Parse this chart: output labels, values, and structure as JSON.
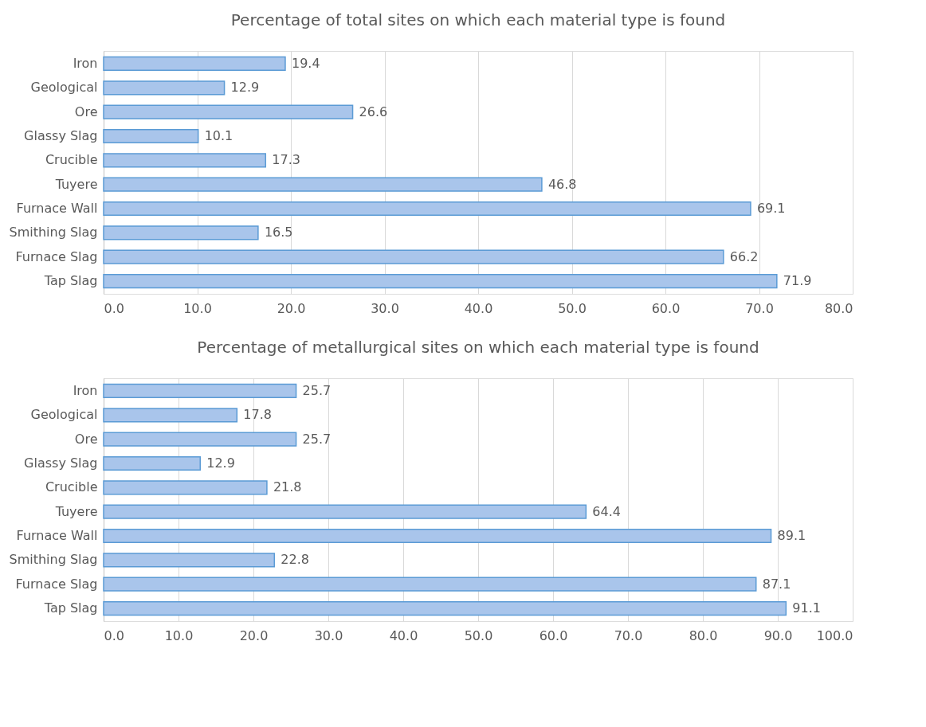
{
  "chart_data": [
    {
      "type": "bar",
      "orientation": "horizontal",
      "title": "Percentage  of total sites on which each material type is found",
      "categories": [
        "Iron",
        "Geological",
        "Ore",
        "Glassy Slag",
        "Crucible",
        "Tuyere",
        "Furnace Wall",
        "Smithing Slag",
        "Furnace Slag",
        "Tap Slag"
      ],
      "values": [
        19.4,
        12.9,
        26.6,
        10.1,
        17.3,
        46.8,
        69.1,
        16.5,
        66.2,
        71.9
      ],
      "color": "#a9c5eb",
      "xlim": [
        0,
        80
      ],
      "xticks": [
        {
          "value": 0,
          "label": "0.0"
        },
        {
          "value": 10,
          "label": "10.0"
        },
        {
          "value": 20,
          "label": "20.0"
        },
        {
          "value": 30,
          "label": "30.0"
        },
        {
          "value": 40,
          "label": "40.0"
        },
        {
          "value": 50,
          "label": "50.0"
        },
        {
          "value": 60,
          "label": "60.0"
        },
        {
          "value": 70,
          "label": "70.0"
        },
        {
          "value": 80,
          "label": "80.0"
        }
      ],
      "grid": "x",
      "data_labels": true
    },
    {
      "type": "bar",
      "orientation": "horizontal",
      "title": "Percentage  of metallurgical  sites on which each material  type is found",
      "categories": [
        "Iron",
        "Geological",
        "Ore",
        "Glassy Slag",
        "Crucible",
        "Tuyere",
        "Furnace Wall",
        "Smithing Slag",
        "Furnace Slag",
        "Tap Slag"
      ],
      "values": [
        25.7,
        17.8,
        25.7,
        12.9,
        21.8,
        64.4,
        89.1,
        22.8,
        87.1,
        91.1
      ],
      "color": "#a9c5eb",
      "xlim": [
        0,
        100
      ],
      "xticks": [
        {
          "value": 0,
          "label": "0.0"
        },
        {
          "value": 10,
          "label": "10.0"
        },
        {
          "value": 20,
          "label": "20.0"
        },
        {
          "value": 30,
          "label": "30.0"
        },
        {
          "value": 40,
          "label": "40.0"
        },
        {
          "value": 50,
          "label": "50.0"
        },
        {
          "value": 60,
          "label": "60.0"
        },
        {
          "value": 70,
          "label": "70.0"
        },
        {
          "value": 80,
          "label": "80.0"
        },
        {
          "value": 90,
          "label": "90.0"
        },
        {
          "value": 100,
          "label": "100.0"
        }
      ],
      "grid": "x",
      "data_labels": true
    }
  ]
}
